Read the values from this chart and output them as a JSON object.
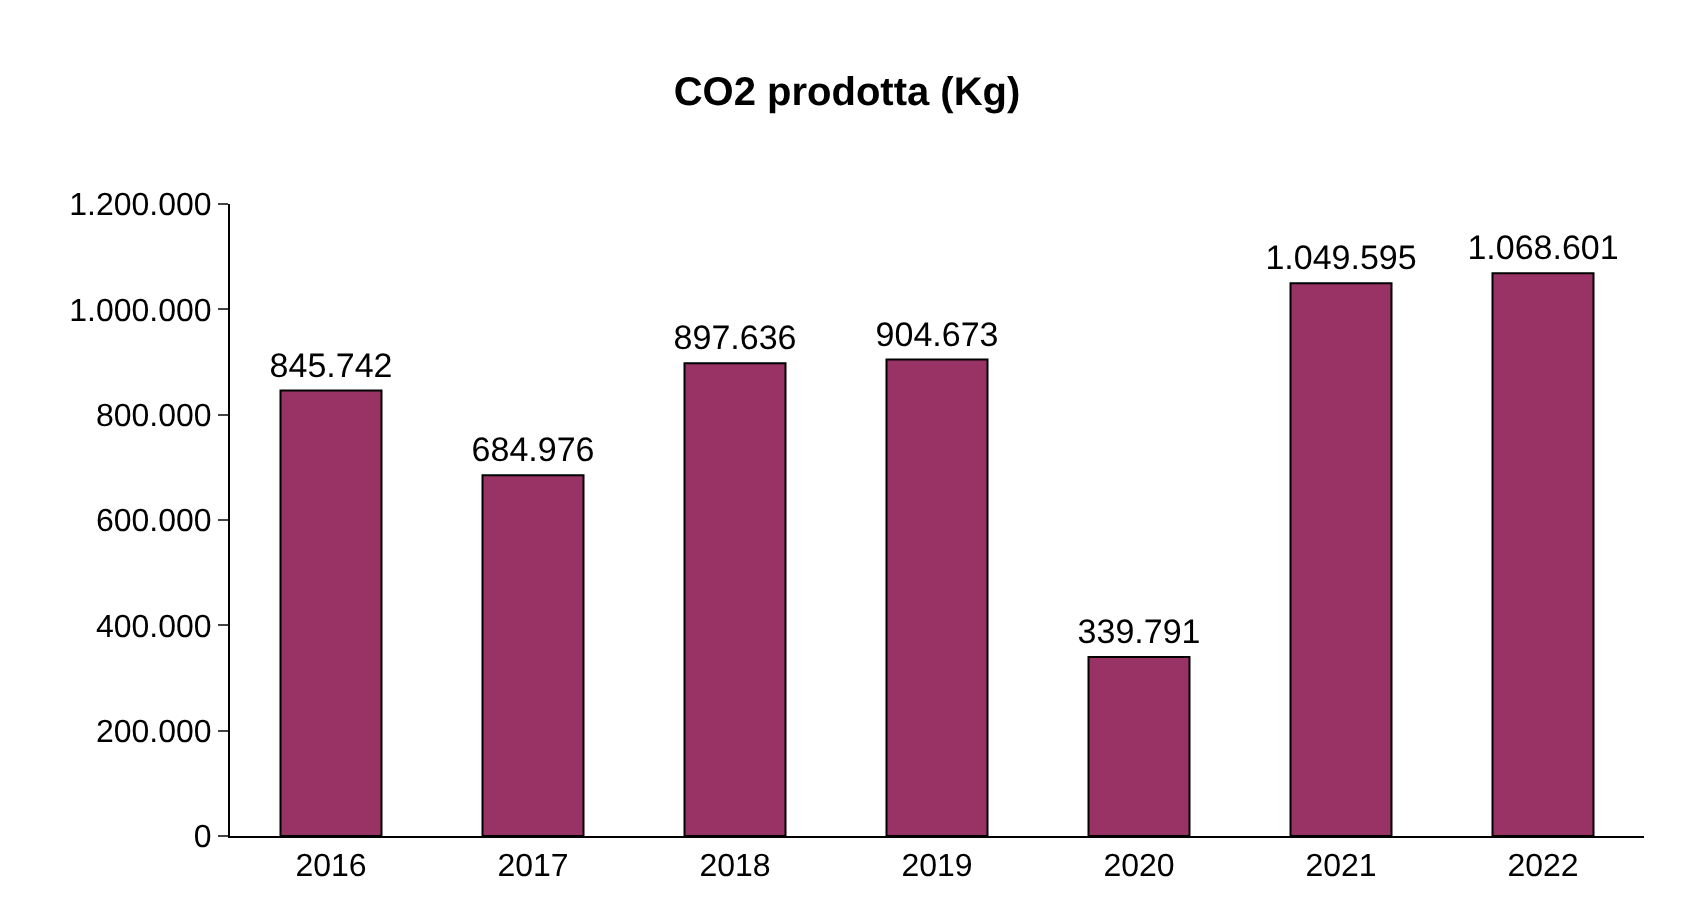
{
  "chart_data": {
    "type": "bar",
    "title": "CO2 prodotta (Kg)",
    "categories": [
      "2016",
      "2017",
      "2018",
      "2019",
      "2020",
      "2021",
      "2022"
    ],
    "values": [
      845742,
      684976,
      897636,
      904673,
      339791,
      1049595,
      1068601
    ],
    "value_labels": [
      "845.742",
      "684.976",
      "897.636",
      "904.673",
      "339.791",
      "1.049.595",
      "1.068.601"
    ],
    "color": "#993366",
    "ylim": [
      0,
      1200000
    ],
    "yticks": [
      {
        "value": 0,
        "label": "0"
      },
      {
        "value": 200000,
        "label": "200.000"
      },
      {
        "value": 400000,
        "label": "400.000"
      },
      {
        "value": 600000,
        "label": "600.000"
      },
      {
        "value": 800000,
        "label": "800.000"
      },
      {
        "value": 1000000,
        "label": "1.000.000"
      },
      {
        "value": 1200000,
        "label": "1.200.000"
      }
    ],
    "grid": false
  }
}
